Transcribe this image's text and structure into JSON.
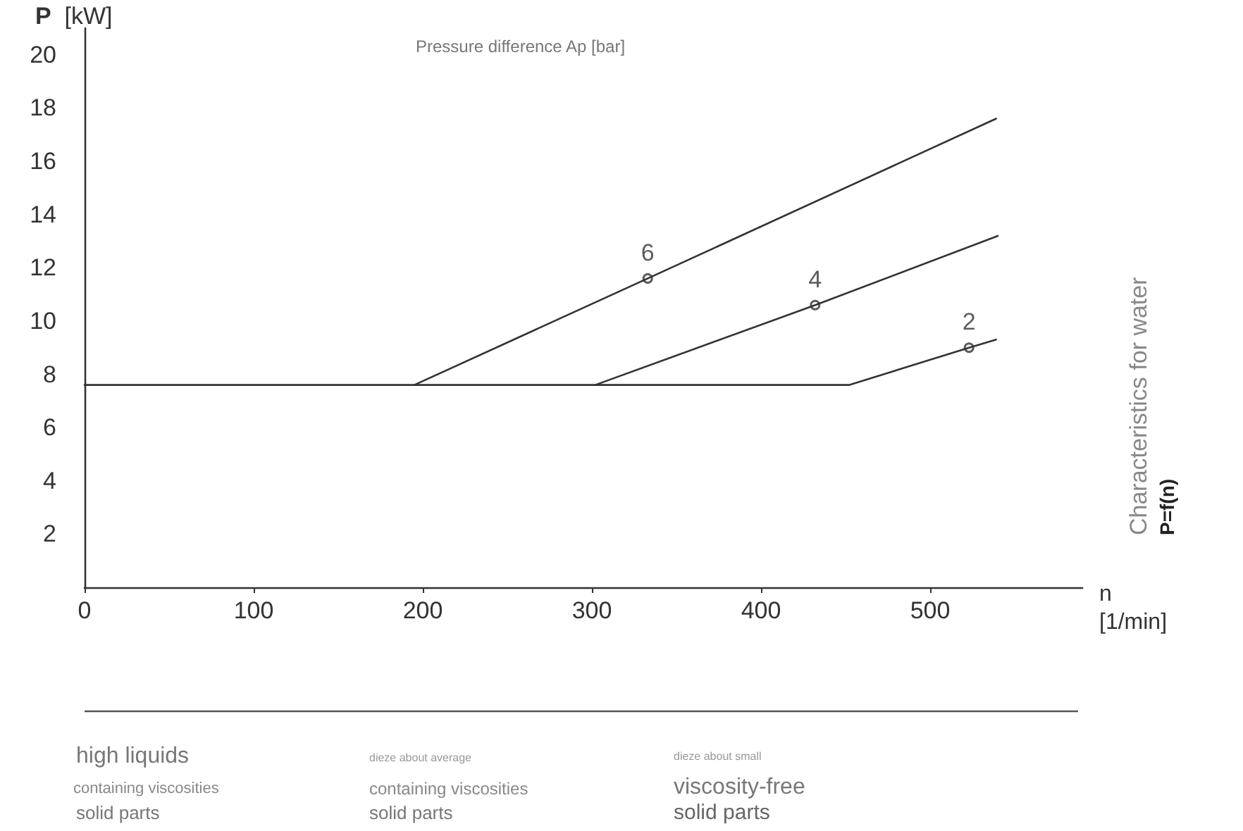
{
  "chart_data": {
    "type": "line",
    "title": "Pressure difference Ap [bar]",
    "ylabel": "P  [kW]",
    "xlabel": "n\n[1/min]",
    "xlim": [
      0,
      590
    ],
    "xticks": [
      0,
      100,
      200,
      300,
      400,
      500
    ],
    "ylim": [
      0,
      21
    ],
    "yticks": [
      2,
      4,
      6,
      8,
      10,
      12,
      14,
      16,
      18,
      20
    ],
    "grid": false,
    "legend": false,
    "line_style": "solid",
    "series": [
      {
        "color": "#333333",
        "x": [
          195,
          333,
          539
        ],
        "values": [
          7.6,
          11.6,
          17.6
        ],
        "marker": "none"
      },
      {
        "color": "#333333",
        "x": [
          302,
          432,
          540
        ],
        "values": [
          7.6,
          10.6,
          13.2
        ],
        "marker": "none"
      },
      {
        "color": "#333333",
        "x": [
          0,
          452,
          523,
          539
        ],
        "values": [
          7.6,
          7.6,
          9.0,
          9.3
        ],
        "marker": "none"
      },
      {
        "type": "scatter",
        "name": "6",
        "color": "#333333",
        "x": [
          333
        ],
        "values": [
          11.6
        ],
        "marker": "circle"
      },
      {
        "type": "scatter",
        "name": "4",
        "color": "#333333",
        "x": [
          432
        ],
        "values": [
          10.6
        ],
        "marker": "circle"
      },
      {
        "type": "scatter",
        "name": "2",
        "color": "#333333",
        "x": [
          523
        ],
        "values": [
          9.0
        ],
        "marker": "circle"
      }
    ],
    "annotations": [
      "Characteristics for water",
      "P=f(n)",
      "high liquids",
      "containing viscosities",
      "solid parts",
      "dieze about average",
      "containing viscosities",
      "solid parts",
      "dieze about small",
      "viscosity-free",
      "solid parts"
    ]
  }
}
